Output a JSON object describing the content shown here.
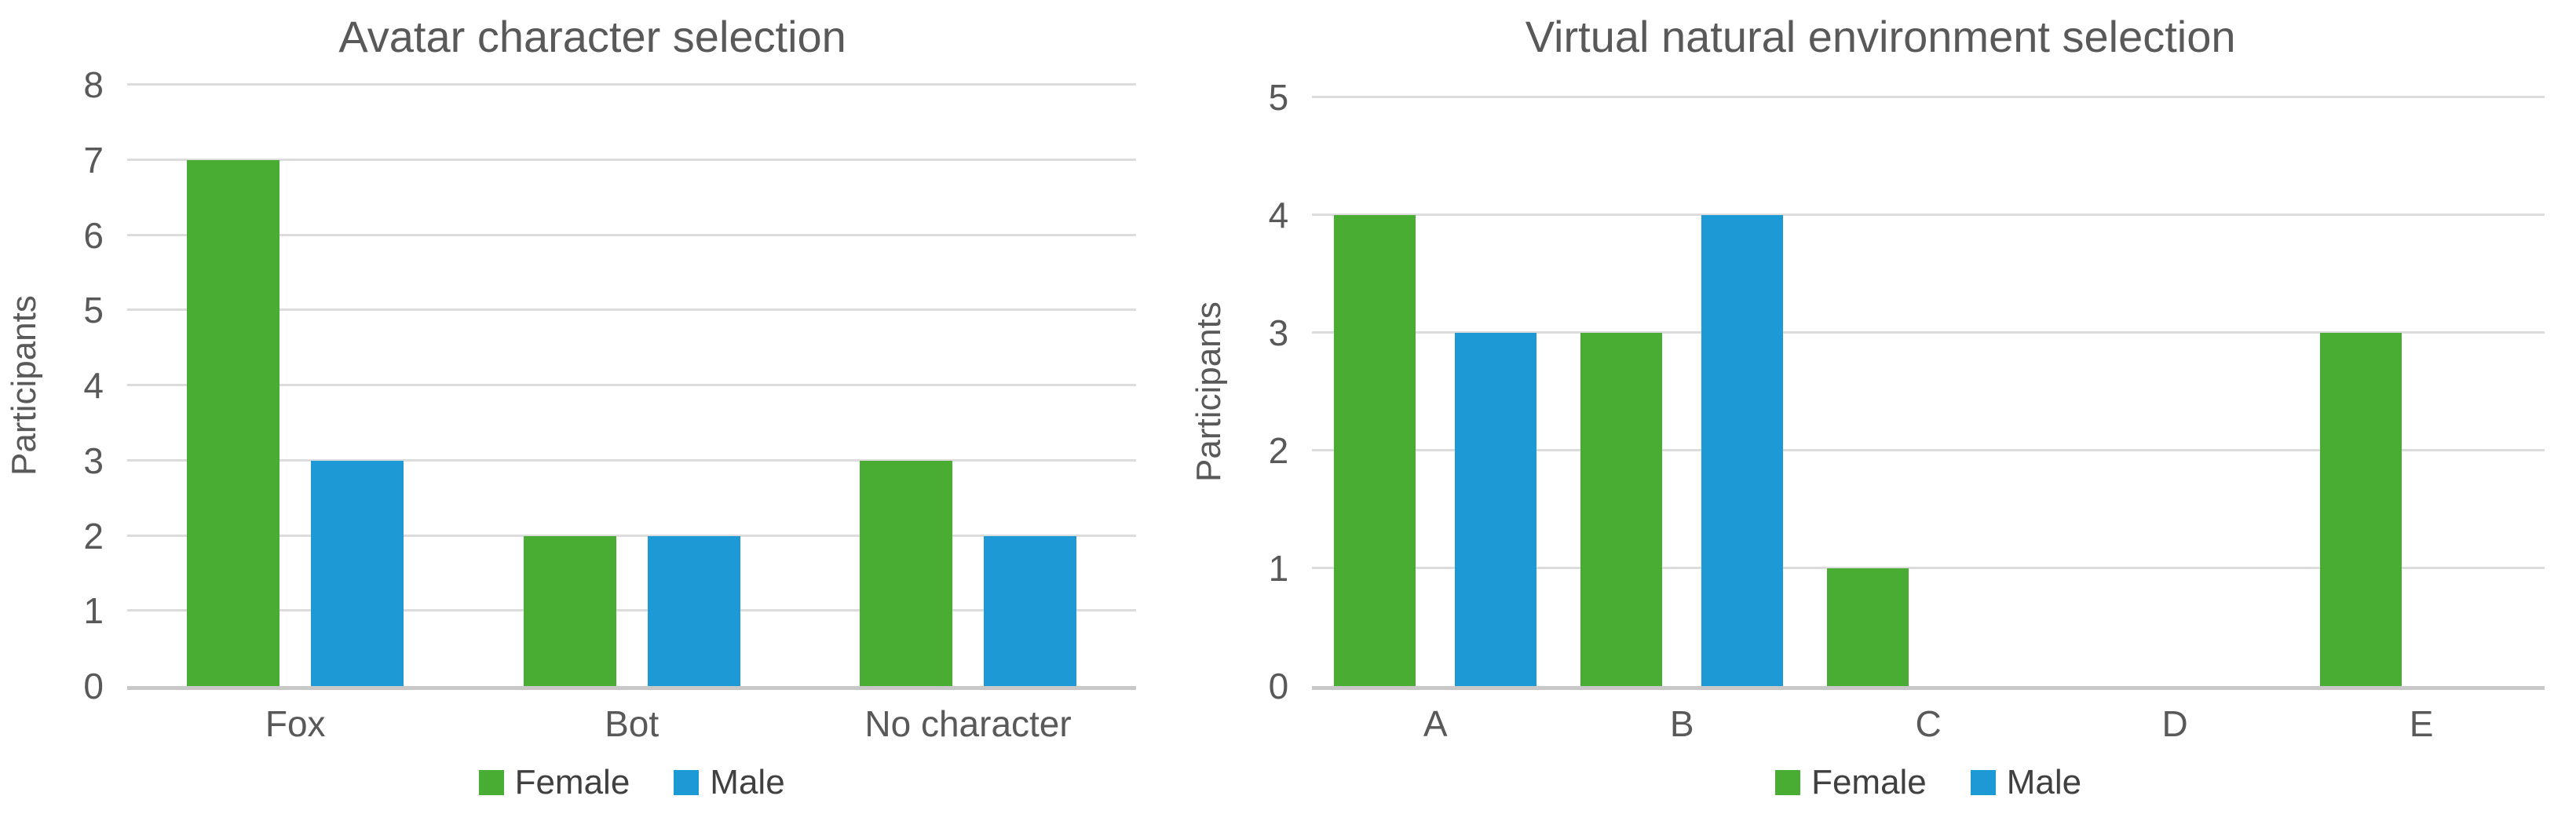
{
  "colors": {
    "female": "#4aad33",
    "male": "#1d9ad6",
    "text": "#595959",
    "legend_text": "#404040",
    "gridline": "#dcdcdc",
    "axis_line": "#c8c8c8"
  },
  "chart_data": [
    {
      "type": "bar",
      "title": "Avatar character selection",
      "xlabel": "",
      "ylabel": "Participants",
      "categories": [
        "Fox",
        "Bot",
        "No character"
      ],
      "series": [
        {
          "name": "Female",
          "color_key": "female",
          "values": [
            7,
            2,
            3
          ]
        },
        {
          "name": "Male",
          "color_key": "male",
          "values": [
            3,
            2,
            2
          ]
        }
      ],
      "ylim": [
        0,
        8
      ],
      "ytick_step": 1,
      "grid": true,
      "legend_position": "bottom"
    },
    {
      "type": "bar",
      "title": "Virtual natural environment selection",
      "xlabel": "",
      "ylabel": "Participants",
      "categories": [
        "A",
        "B",
        "C",
        "D",
        "E"
      ],
      "series": [
        {
          "name": "Female",
          "color_key": "female",
          "values": [
            4,
            3,
            1,
            0,
            3
          ]
        },
        {
          "name": "Male",
          "color_key": "male",
          "values": [
            3,
            4,
            0,
            0,
            0
          ]
        }
      ],
      "ylim": [
        0,
        5
      ],
      "ytick_step": 1,
      "grid": true,
      "legend_position": "bottom"
    }
  ]
}
